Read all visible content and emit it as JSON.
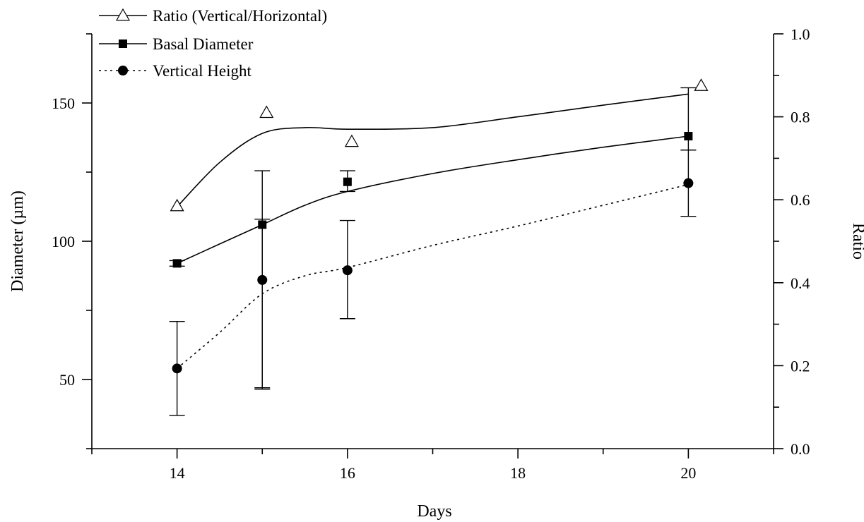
{
  "chart_data": {
    "type": "line",
    "xlabel": "Days",
    "ylabel_left": "Diameter (µm)",
    "ylabel_right": "Ratio",
    "x_range": [
      13,
      21
    ],
    "y_left_range": [
      25,
      175
    ],
    "y_right_range": [
      0.0,
      1.0
    ],
    "x_tick_labels": [
      "14",
      "16",
      "18",
      "20"
    ],
    "y_left_tick_labels": [
      "50",
      "100",
      "150"
    ],
    "y_right_tick_labels": [
      "0.0",
      "0.2",
      "0.4",
      "0.6",
      "0.8",
      "1.0"
    ],
    "grid": false,
    "legend_position": "top-left",
    "series": [
      {
        "name": "Ratio (Vertical/Horizontal)",
        "axis": "right",
        "marker": "open-triangle",
        "line_style": "solid",
        "points": [
          {
            "x": 14.0,
            "y": 0.585
          },
          {
            "x": 15.05,
            "y": 0.81
          },
          {
            "x": 16.05,
            "y": 0.74
          },
          {
            "x": 20.15,
            "y": 0.875
          }
        ],
        "curve": [
          {
            "x": 14.0,
            "y": 0.583
          },
          {
            "x": 14.5,
            "y": 0.69
          },
          {
            "x": 15.0,
            "y": 0.76
          },
          {
            "x": 15.5,
            "y": 0.774
          },
          {
            "x": 16.0,
            "y": 0.77
          },
          {
            "x": 17.0,
            "y": 0.774
          },
          {
            "x": 18.0,
            "y": 0.8
          },
          {
            "x": 19.0,
            "y": 0.828
          },
          {
            "x": 20.0,
            "y": 0.855
          }
        ]
      },
      {
        "name": "Basal Diameter",
        "axis": "left",
        "marker": "filled-square",
        "line_style": "solid",
        "points": [
          {
            "x": 14,
            "y": 92,
            "err_low": 91,
            "err_high": 93
          },
          {
            "x": 15,
            "y": 106,
            "err_low": 46.5,
            "err_high": 125.5
          },
          {
            "x": 16,
            "y": 121.5,
            "err_low": 118,
            "err_high": 125.5
          },
          {
            "x": 20,
            "y": 138,
            "err_low": 133,
            "err_high": 155.5
          }
        ],
        "curve": [
          {
            "x": 14.0,
            "y": 92
          },
          {
            "x": 14.5,
            "y": 99
          },
          {
            "x": 15.0,
            "y": 106
          },
          {
            "x": 15.5,
            "y": 113
          },
          {
            "x": 16.0,
            "y": 118
          },
          {
            "x": 17.0,
            "y": 124.5
          },
          {
            "x": 18.0,
            "y": 129.5
          },
          {
            "x": 19.0,
            "y": 134
          },
          {
            "x": 20.0,
            "y": 138
          }
        ]
      },
      {
        "name": "Vertical Height",
        "axis": "left",
        "marker": "filled-circle",
        "line_style": "dotted",
        "points": [
          {
            "x": 14,
            "y": 54,
            "err_low": 37,
            "err_high": 71
          },
          {
            "x": 15,
            "y": 86,
            "err_low": 47,
            "err_high": 108
          },
          {
            "x": 16,
            "y": 89.5,
            "err_low": 72,
            "err_high": 107.5
          },
          {
            "x": 20,
            "y": 121,
            "err_low": 109,
            "err_high": 133
          }
        ],
        "curve": [
          {
            "x": 14.0,
            "y": 54
          },
          {
            "x": 14.5,
            "y": 67
          },
          {
            "x": 15.0,
            "y": 81
          },
          {
            "x": 15.5,
            "y": 87.5
          },
          {
            "x": 16.0,
            "y": 90.5
          },
          {
            "x": 17.0,
            "y": 98.5
          },
          {
            "x": 18.0,
            "y": 105.5
          },
          {
            "x": 19.0,
            "y": 113
          },
          {
            "x": 20.0,
            "y": 120.5
          }
        ]
      }
    ]
  }
}
